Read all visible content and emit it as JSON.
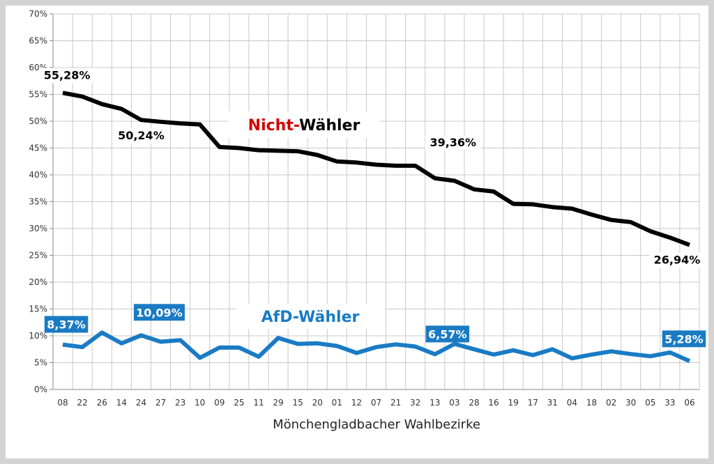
{
  "chart_data": {
    "type": "line",
    "xlabel": "Mönchengladbacher Wahlbezirke",
    "ylabel": "",
    "ylim": [
      0,
      70
    ],
    "y_ticks": [
      "0%",
      "5%",
      "10%",
      "15%",
      "20%",
      "25%",
      "30%",
      "35%",
      "40%",
      "45%",
      "50%",
      "55%",
      "60%",
      "65%",
      "70%"
    ],
    "grid": true,
    "categories": [
      "08",
      "22",
      "26",
      "14",
      "24",
      "27",
      "23",
      "10",
      "09",
      "25",
      "11",
      "29",
      "15",
      "20",
      "01",
      "12",
      "07",
      "21",
      "32",
      "13",
      "03",
      "28",
      "16",
      "19",
      "17",
      "31",
      "04",
      "18",
      "02",
      "30",
      "05",
      "33",
      "06"
    ],
    "series": [
      {
        "name": "Nicht-Wähler",
        "name_parts": [
          "Nicht-",
          "Wähler"
        ],
        "color": "#000000",
        "values": [
          55.28,
          54.6,
          53.2,
          52.3,
          50.24,
          49.9,
          49.6,
          49.4,
          45.2,
          45.0,
          44.6,
          44.5,
          44.4,
          43.7,
          42.5,
          42.3,
          41.9,
          41.7,
          41.7,
          39.36,
          38.9,
          37.3,
          36.9,
          34.6,
          34.5,
          34.0,
          33.7,
          32.6,
          31.6,
          31.2,
          29.5,
          28.3,
          26.94
        ],
        "labels": [
          {
            "index": 0,
            "text": "55,28%"
          },
          {
            "index": 4,
            "text": "50,24%"
          },
          {
            "index": 19,
            "text": "39,36%"
          },
          {
            "index": 32,
            "text": "26,94%"
          }
        ]
      },
      {
        "name": "AfD-Wähler",
        "name_parts": [
          "AfD-Wähler"
        ],
        "color": "#1a7bc4",
        "values": [
          8.37,
          7.9,
          10.6,
          8.6,
          10.09,
          8.9,
          9.2,
          5.9,
          7.8,
          7.8,
          6.1,
          9.6,
          8.5,
          8.6,
          8.1,
          6.8,
          7.9,
          8.4,
          8.0,
          6.57,
          8.5,
          7.5,
          6.5,
          7.3,
          6.4,
          7.5,
          5.8,
          6.5,
          7.1,
          6.6,
          6.2,
          6.9,
          5.28
        ],
        "labels": [
          {
            "index": 0,
            "text": "8,37%"
          },
          {
            "index": 4,
            "text": "10,09%"
          },
          {
            "index": 19,
            "text": "6,57%"
          },
          {
            "index": 32,
            "text": "5,28%"
          }
        ]
      }
    ],
    "title_colors": {
      "accent": "#d40000",
      "text": "#000000",
      "afd": "#1a7bc4"
    }
  }
}
